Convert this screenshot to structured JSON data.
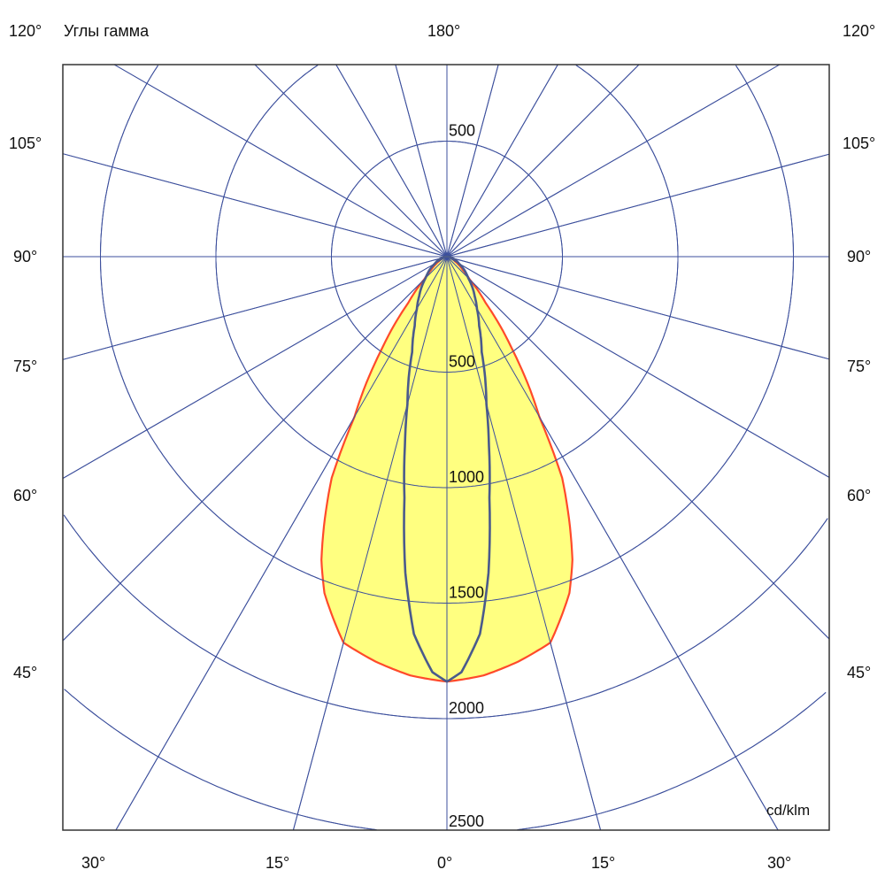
{
  "chart_data": {
    "type": "line",
    "projection": "polar",
    "title": "Углы гамма",
    "unit": "cd/klm",
    "radial_ticks": [
      500,
      1000,
      1500,
      2000,
      2500
    ],
    "radial_tick_labels": [
      "500",
      "1000",
      "1500",
      "2000",
      "2500"
    ],
    "radial_top_label": "500",
    "radial_grid_values": [
      500,
      1000,
      1500,
      2000,
      2500,
      3000
    ],
    "angle_grid_step_deg": 15,
    "angle_labels": {
      "top_center": "180°",
      "left": [
        "120°",
        "105°",
        "90°",
        "75°",
        "60°",
        "45°"
      ],
      "right": [
        "120°",
        "105°",
        "90°",
        "75°",
        "60°",
        "45°"
      ],
      "bottom": [
        "30°",
        "15°",
        "0°",
        "15°",
        "30°"
      ]
    },
    "grid": true,
    "colors": {
      "grid": "#3c4f9c",
      "fill": "#ffff80",
      "outline": "#ff4a2a",
      "curve2": "#4a5a8c",
      "frame": "#333333"
    },
    "series": [
      {
        "gamma_deg": [
          0,
          5,
          10,
          15,
          20,
          22.5,
          25,
          27.5,
          30,
          32.5,
          35,
          40,
          45,
          50,
          60,
          70,
          80,
          90
        ],
        "values": [
          1840,
          1820,
          1780,
          1730,
          1550,
          1420,
          1250,
          1080,
          800,
          650,
          500,
          260,
          140,
          90,
          40,
          20,
          8,
          0
        ],
        "style": "filled"
      },
      {
        "gamma_deg": [
          0,
          2,
          5,
          7.5,
          10,
          12.5,
          15,
          20,
          25,
          30,
          35,
          45,
          60,
          75,
          90
        ],
        "values": [
          1840,
          1800,
          1640,
          1380,
          1060,
          840,
          660,
          440,
          330,
          260,
          210,
          130,
          60,
          25,
          0
        ],
        "style": "line"
      }
    ]
  }
}
